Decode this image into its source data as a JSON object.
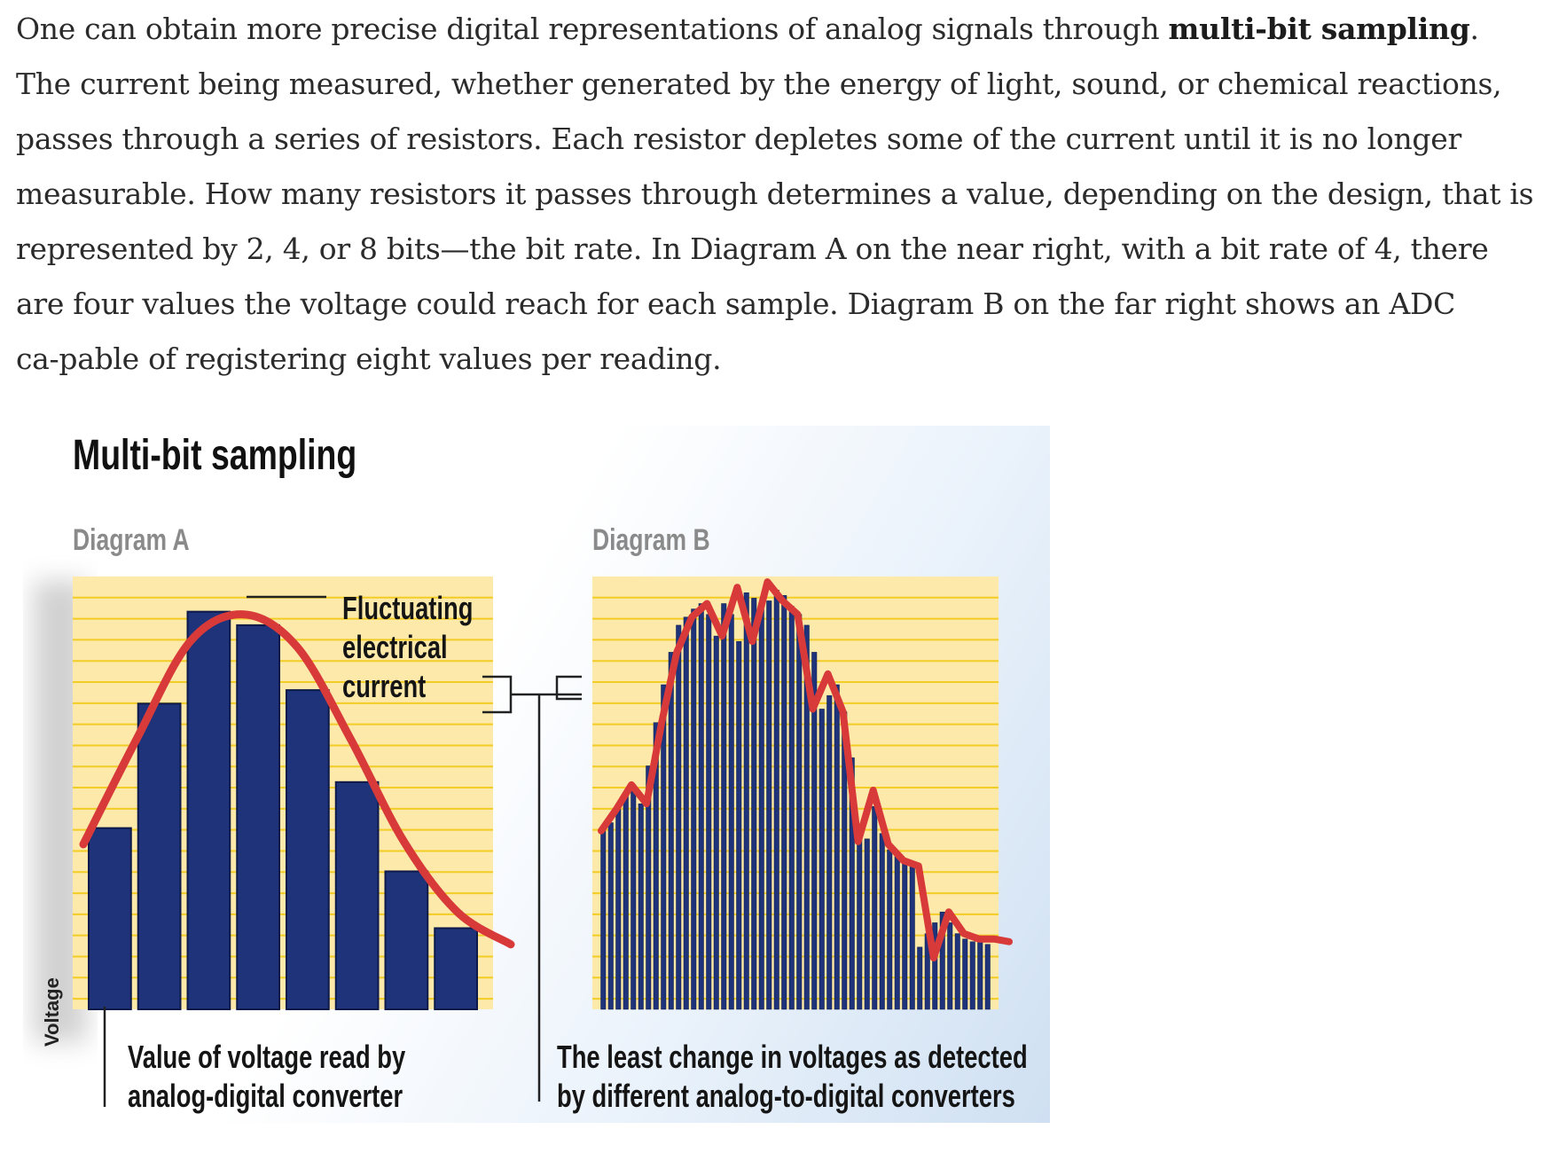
{
  "article": {
    "text_before": "One can obtain more precise digital representations of analog signals through ",
    "bold_term": "multi-bit sampling",
    "text_after": ". The current being measured, whether generated by the energy of light, sound, or chemical reactions, passes through a series of resistors. Each resistor depletes some of the current until it is no longer measurable. How many resistors it passes through determines a value, depending on the design, that is represented by 2, 4, or 8 bits—the bit rate. In Diagram A on the near right, with a bit rate of 4, there are four values the voltage could reach for each sample. Diagram B on the far right shows an ADC ca‑pable of registering eight values per reading."
  },
  "figure": {
    "title": "Multi-bit sampling",
    "diagram_a_label": "Diagram A",
    "diagram_b_label": "Diagram B",
    "axis_label": "Voltage",
    "callout_line1": "Fluctuating",
    "callout_line2": "electrical",
    "callout_line3": "current",
    "caption_a_line1": "Value of voltage read by",
    "caption_a_line2": "analog-digital converter",
    "caption_b_line1": "The least change in voltages as detected",
    "caption_b_line2": "by different analog-to-digital converters",
    "colors": {
      "bar": "#1e3379",
      "bar_stroke": "#0d1a4a",
      "curve": "#d83a3a",
      "panel": "#fde9a9",
      "gridline": "#f3cc25"
    }
  },
  "chart_data": [
    {
      "type": "bar",
      "panel": "Diagram A",
      "ylim": [
        0,
        16
      ],
      "values": [
        6.7,
        11.3,
        14.7,
        14.2,
        11.8,
        8.4,
        5.1,
        3.0
      ],
      "curve": [
        6.1,
        10.0,
        13.6,
        14.6,
        13.4,
        10.0,
        6.2,
        3.6,
        2.4
      ]
    },
    {
      "type": "bar",
      "panel": "Diagram B",
      "ylim": [
        0,
        16
      ],
      "values": [
        6.6,
        6.9,
        7.4,
        8.0,
        8.3,
        7.6,
        9.0,
        10.6,
        12.0,
        13.2,
        14.2,
        14.5,
        14.8,
        15.0,
        14.6,
        13.8,
        15.0,
        14.6,
        13.6,
        15.4,
        15.2,
        14.8,
        15.1,
        15.5,
        15.3,
        14.9,
        14.6,
        14.2,
        13.2,
        11.1,
        11.6,
        12.0,
        11.0,
        9.3,
        6.5,
        6.3,
        7.5,
        6.5,
        5.9,
        5.7,
        5.5,
        5.3,
        2.3,
        2.8,
        3.2,
        3.6,
        3.2,
        2.8,
        2.6,
        2.5,
        2.5,
        2.4
      ],
      "curve": [
        6.6,
        7.4,
        8.3,
        7.6,
        10.6,
        13.2,
        14.5,
        15.0,
        13.8,
        15.6,
        13.6,
        15.8,
        15.1,
        14.6,
        11.1,
        12.4,
        11.0,
        6.2,
        8.1,
        6.1,
        5.5,
        5.3,
        1.9,
        3.6,
        2.8,
        2.6,
        2.6,
        2.5
      ]
    }
  ]
}
